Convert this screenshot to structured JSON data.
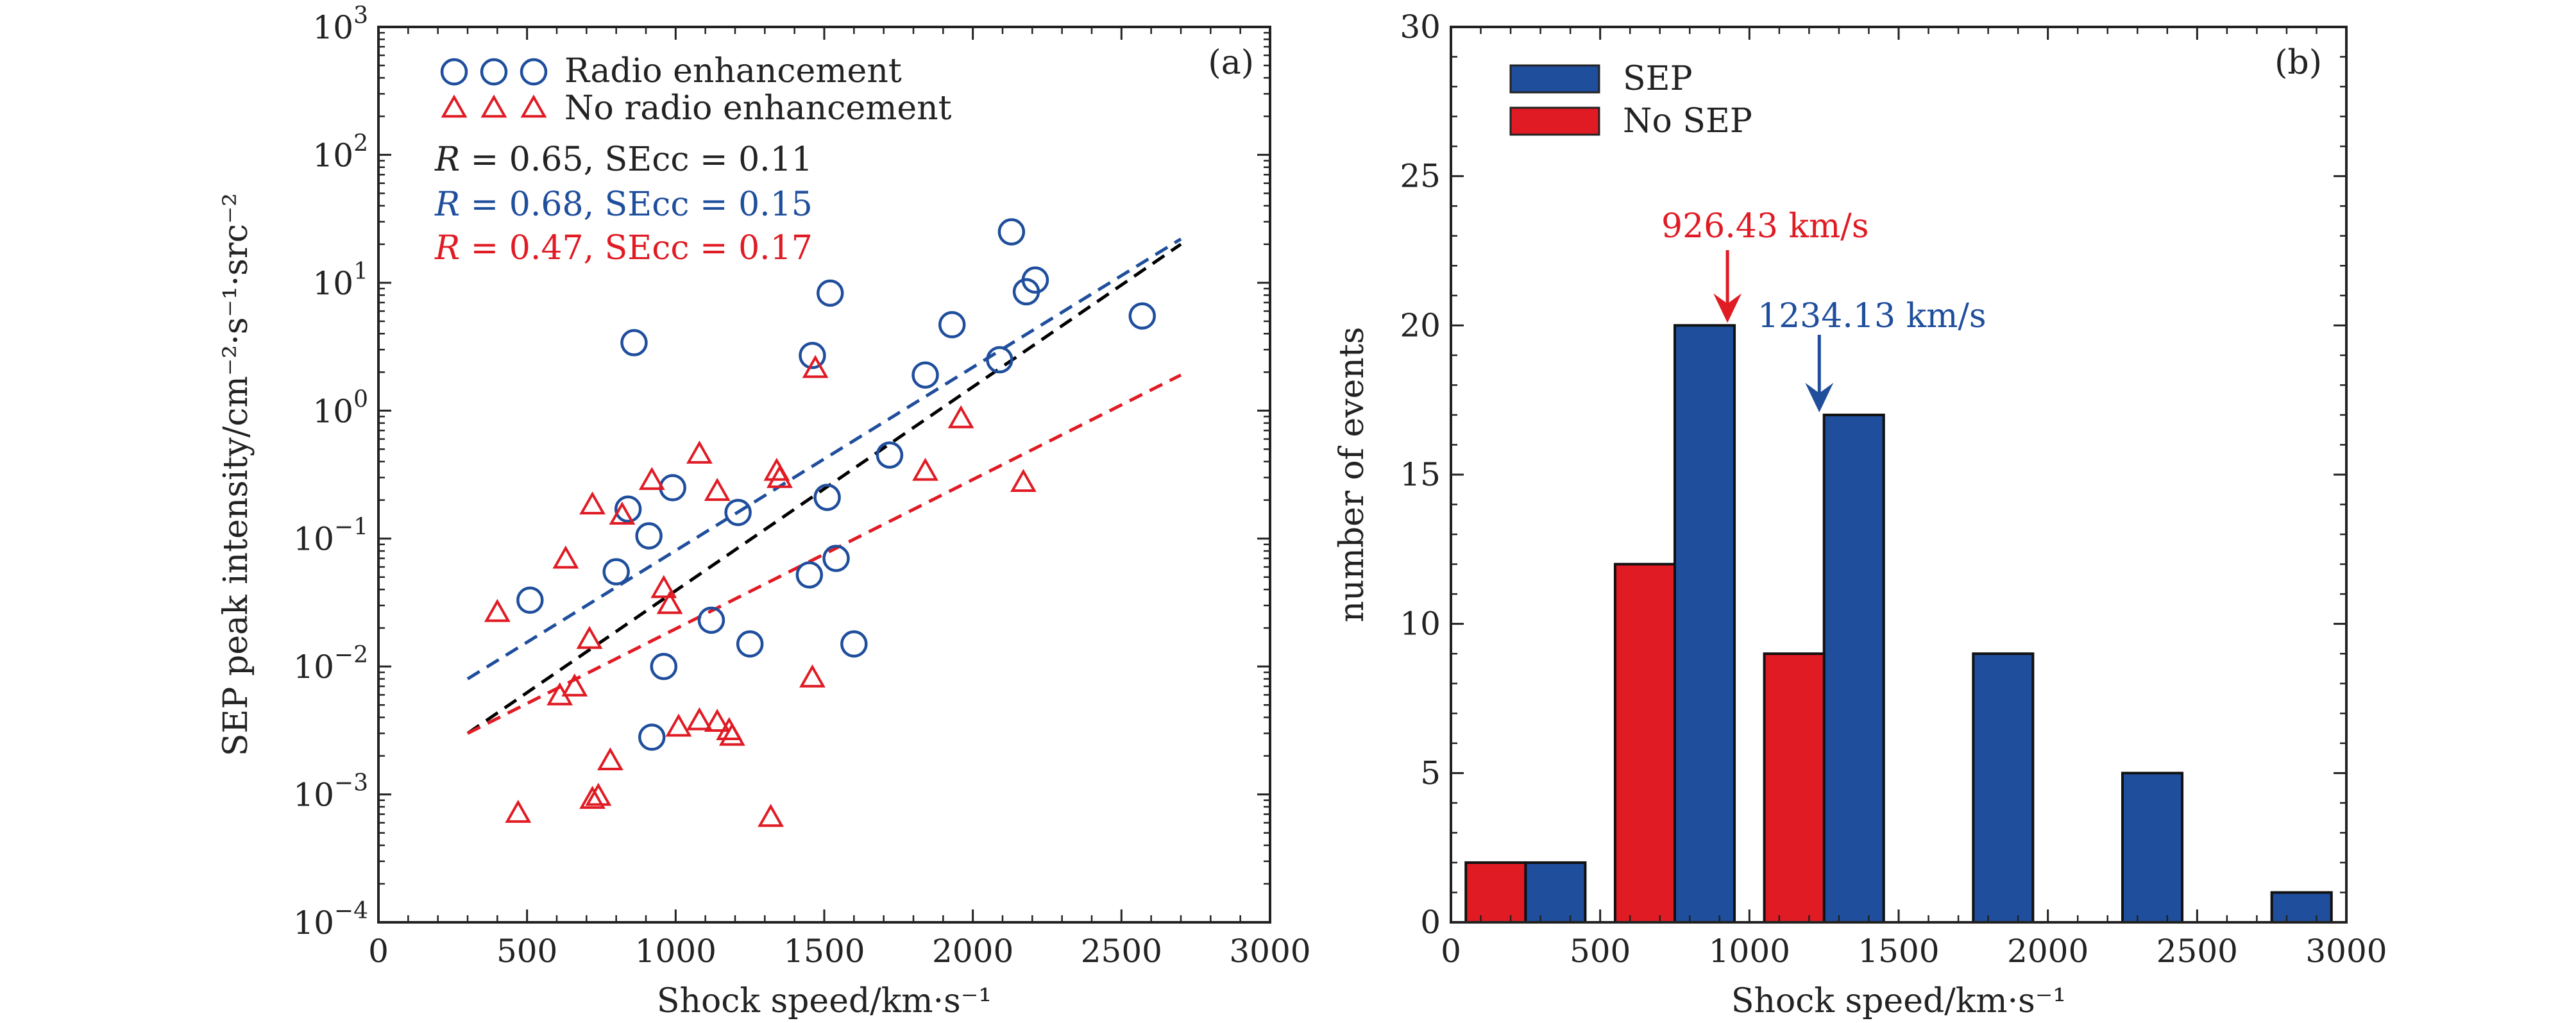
{
  "chart_data": [
    {
      "type": "scatter",
      "panel_label": "(a)",
      "xlabel": "Shock speed/km·s⁻¹",
      "ylabel": "SEP peak intensity/cm⁻²·s⁻¹·src⁻²",
      "xlim": [
        0,
        3000
      ],
      "ylim": [
        0.0001,
        1000
      ],
      "yscale": "log",
      "x_ticks": [
        "0",
        "500",
        "1000",
        "1500",
        "2000",
        "2500",
        "3000"
      ],
      "y_ticks": [
        {
          "value": 0.0001,
          "base": "10",
          "exp": "−4"
        },
        {
          "value": 0.001,
          "base": "10",
          "exp": "−3"
        },
        {
          "value": 0.01,
          "base": "10",
          "exp": "−2"
        },
        {
          "value": 0.1,
          "base": "10",
          "exp": "−1"
        },
        {
          "value": 1,
          "base": "10",
          "exp": "0"
        },
        {
          "value": 10,
          "base": "10",
          "exp": "1"
        },
        {
          "value": 100,
          "base": "10",
          "exp": "2"
        },
        {
          "value": 1000,
          "base": "10",
          "exp": "3"
        }
      ],
      "legend": {
        "placement": "top-left"
      },
      "series": [
        {
          "name": "Radio enhancement",
          "marker": "circle",
          "color": "#1f4e9c",
          "points": [
            [
              860,
              3.4
            ],
            [
              2130,
              25
            ],
            [
              2210,
              10.5
            ],
            [
              2180,
              8.5
            ],
            [
              1520,
              8.3
            ],
            [
              1930,
              4.7
            ],
            [
              2570,
              5.5
            ],
            [
              2090,
              2.5
            ],
            [
              1840,
              1.9
            ],
            [
              1460,
              2.7
            ],
            [
              1720,
              0.45
            ],
            [
              1510,
              0.21
            ],
            [
              990,
              0.25
            ],
            [
              840,
              0.17
            ],
            [
              1210,
              0.16
            ],
            [
              910,
              0.105
            ],
            [
              800,
              0.055
            ],
            [
              1540,
              0.07
            ],
            [
              1450,
              0.052
            ],
            [
              510,
              0.033
            ],
            [
              1120,
              0.023
            ],
            [
              1250,
              0.015
            ],
            [
              1600,
              0.015
            ],
            [
              960,
              0.01
            ],
            [
              920,
              0.0028
            ]
          ]
        },
        {
          "name": "No radio enhancement",
          "marker": "triangle",
          "color": "#e01b24",
          "points": [
            [
              1470,
              2.1
            ],
            [
              1960,
              0.85
            ],
            [
              1080,
              0.45
            ],
            [
              1340,
              0.33
            ],
            [
              1840,
              0.33
            ],
            [
              1350,
              0.29
            ],
            [
              920,
              0.28
            ],
            [
              2170,
              0.27
            ],
            [
              1140,
              0.23
            ],
            [
              720,
              0.18
            ],
            [
              820,
              0.15
            ],
            [
              630,
              0.068
            ],
            [
              960,
              0.04
            ],
            [
              980,
              0.03
            ],
            [
              400,
              0.026
            ],
            [
              710,
              0.016
            ],
            [
              1460,
              0.008
            ],
            [
              660,
              0.0068
            ],
            [
              610,
              0.0058
            ],
            [
              1080,
              0.0037
            ],
            [
              1140,
              0.0036
            ],
            [
              1010,
              0.0033
            ],
            [
              1180,
              0.0031
            ],
            [
              1190,
              0.0028
            ],
            [
              780,
              0.0018
            ],
            [
              740,
              0.00095
            ],
            [
              720,
              0.0009
            ],
            [
              470,
              0.0007
            ],
            [
              1320,
              0.00065
            ]
          ]
        }
      ],
      "fits": [
        {
          "color": "#000000",
          "x": [
            300,
            2700
          ],
          "y": [
            0.003,
            20
          ],
          "R": "0.65",
          "SEcc": "0.11"
        },
        {
          "color": "#1f4e9c",
          "x": [
            300,
            2700
          ],
          "y": [
            0.008,
            22
          ],
          "R": "0.68",
          "SEcc": "0.15"
        },
        {
          "color": "#e01b24",
          "x": [
            300,
            2700
          ],
          "y": [
            0.003,
            1.9
          ],
          "R": "0.47",
          "SEcc": "0.17"
        }
      ]
    },
    {
      "type": "bar",
      "panel_label": "(b)",
      "xlabel": "Shock speed/km·s⁻¹",
      "ylabel": "number of events",
      "xlim": [
        0,
        3000
      ],
      "ylim": [
        0,
        30
      ],
      "x_ticks": [
        "0",
        "500",
        "1000",
        "1500",
        "2000",
        "2500",
        "3000"
      ],
      "y_ticks": [
        "0",
        "5",
        "10",
        "15",
        "20",
        "25",
        "30"
      ],
      "legend": {
        "placement": "top-left"
      },
      "series": [
        {
          "name": "SEP",
          "color": "#1f4e9c",
          "bars": [
            {
              "x0": 250,
              "x1": 450,
              "value": 2
            },
            {
              "x0": 750,
              "x1": 950,
              "value": 20
            },
            {
              "x0": 1250,
              "x1": 1450,
              "value": 17
            },
            {
              "x0": 1750,
              "x1": 1950,
              "value": 9
            },
            {
              "x0": 2250,
              "x1": 2450,
              "value": 5
            },
            {
              "x0": 2750,
              "x1": 2950,
              "value": 1
            }
          ]
        },
        {
          "name": "No SEP",
          "color": "#e01b24",
          "bars": [
            {
              "x0": 50,
              "x1": 250,
              "value": 2
            },
            {
              "x0": 550,
              "x1": 750,
              "value": 12
            },
            {
              "x0": 1050,
              "x1": 1250,
              "value": 9
            }
          ]
        }
      ],
      "annotations": [
        {
          "text": "926.43 km/s",
          "x": 926.43,
          "color": "#e01b24",
          "arrow_to_y": 20
        },
        {
          "text": "1234.13 km/s",
          "x": 1234.13,
          "color": "#1f4e9c",
          "arrow_to_y": 17
        }
      ]
    }
  ]
}
